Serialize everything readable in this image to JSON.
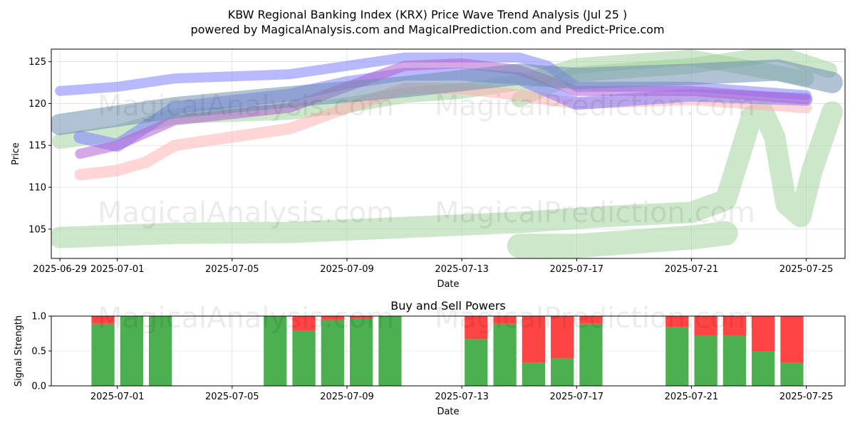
{
  "title_line1": "KBW Regional Banking Index (KRX) Price Wave Trend Analysis (Jul 25 )",
  "title_line2": "powered by MagicalAnalysis.com and MagicalPrediction.com and Predict-Price.com",
  "watermarks": [
    "MagicalAnalysis.com",
    "MagicalPrediction.com"
  ],
  "colors": {
    "green": "#4caf50",
    "red": "#ff4444",
    "band_green": "#a3d39c",
    "band_blue": "#8080ff",
    "band_red": "#ffb3b3",
    "band_purple": "#b060d0"
  },
  "chart_data": [
    {
      "type": "area",
      "title": "",
      "xlabel": "Date",
      "ylabel": "Price",
      "x_range": [
        "2025-06-29",
        "2025-07-26"
      ],
      "ylim": [
        101.5,
        126.5
      ],
      "y_ticks": [
        105,
        110,
        115,
        120,
        125
      ],
      "x_ticks": [
        "2025-06-29",
        "2025-07-01",
        "2025-07-05",
        "2025-07-09",
        "2025-07-13",
        "2025-07-17",
        "2025-07-21",
        "2025-07-25"
      ],
      "grid": true,
      "series": [
        {
          "color": "#a3d39c",
          "width": 22,
          "points": [
            [
              "2025-06-29",
              115.5
            ],
            [
              "2025-07-01",
              116.5
            ],
            [
              "2025-07-03",
              118.5
            ],
            [
              "2025-07-07",
              119
            ],
            [
              "2025-07-09",
              119.8
            ],
            [
              "2025-07-11",
              121
            ],
            [
              "2025-07-13",
              121.5
            ],
            [
              "2025-07-15",
              122.5
            ],
            [
              "2025-07-17",
              124.5
            ],
            [
              "2025-07-21",
              125.5
            ],
            [
              "2025-07-25",
              123
            ]
          ]
        },
        {
          "color": "#a3d39c",
          "width": 30,
          "points": [
            [
              "2025-06-29",
              104
            ],
            [
              "2025-07-03",
              104.5
            ],
            [
              "2025-07-07",
              104.6
            ],
            [
              "2025-07-11",
              105.2
            ],
            [
              "2025-07-15",
              105.8
            ],
            [
              "2025-07-18",
              106.5
            ],
            [
              "2025-07-21",
              107
            ],
            [
              "2025-07-22.2",
              108.5
            ],
            [
              "2025-07-22.7",
              114
            ],
            [
              "2025-07-23.1",
              118.5
            ],
            [
              "2025-07-23.5",
              119
            ],
            [
              "2025-07-23.9",
              116
            ],
            [
              "2025-07-24.3",
              108
            ],
            [
              "2025-07-24.8",
              106.5
            ],
            [
              "2025-07-25.2",
              112
            ],
            [
              "2025-07-25.9",
              119
            ]
          ]
        },
        {
          "color": "#a3d39c",
          "width": 34,
          "points": [
            [
              "2025-07-15",
              103
            ],
            [
              "2025-07-17",
              103
            ],
            [
              "2025-07-21",
              104
            ],
            [
              "2025-07-22.2",
              104.5
            ]
          ]
        },
        {
          "color": "#a3d39c",
          "width": 22,
          "points": [
            [
              "2025-07-15",
              120.5
            ],
            [
              "2025-07-17",
              123.5
            ],
            [
              "2025-07-21",
              124.5
            ],
            [
              "2025-07-24",
              126
            ],
            [
              "2025-07-25.8",
              124
            ]
          ]
        },
        {
          "color": "#ffb3b3",
          "width": 16,
          "points": [
            [
              "2025-06-29.7",
              111.5
            ],
            [
              "2025-07-01",
              112
            ],
            [
              "2025-07-02",
              113
            ],
            [
              "2025-07-03",
              115
            ],
            [
              "2025-07-07",
              117
            ],
            [
              "2025-07-09",
              119.5
            ],
            [
              "2025-07-11",
              121.8
            ],
            [
              "2025-07-13",
              121.8
            ],
            [
              "2025-07-15",
              121
            ],
            [
              "2025-07-17",
              120
            ],
            [
              "2025-07-21",
              120.5
            ],
            [
              "2025-07-25",
              119.5
            ]
          ]
        },
        {
          "color": "#8080ff",
          "width": 14,
          "points": [
            [
              "2025-06-29",
              121.5
            ],
            [
              "2025-07-01",
              122
            ],
            [
              "2025-07-03",
              123
            ],
            [
              "2025-07-07",
              123.5
            ],
            [
              "2025-07-09",
              124.5
            ],
            [
              "2025-07-11",
              125.5
            ],
            [
              "2025-07-13",
              125.5
            ],
            [
              "2025-07-15",
              125.5
            ],
            [
              "2025-07-16",
              124.5
            ],
            [
              "2025-07-17",
              122
            ],
            [
              "2025-07-21",
              122
            ],
            [
              "2025-07-25",
              121
            ]
          ]
        },
        {
          "color": "#8080ff",
          "width": 18,
          "points": [
            [
              "2025-06-29.7",
              116
            ],
            [
              "2025-07-01",
              115
            ],
            [
              "2025-07-03",
              119.5
            ],
            [
              "2025-07-07",
              121
            ],
            [
              "2025-07-09",
              122.5
            ],
            [
              "2025-07-11",
              123.5
            ],
            [
              "2025-07-13",
              123.5
            ],
            [
              "2025-07-15",
              123
            ],
            [
              "2025-07-16",
              121.5
            ],
            [
              "2025-07-17",
              120
            ],
            [
              "2025-07-21",
              121
            ],
            [
              "2025-07-25",
              120.5
            ]
          ]
        },
        {
          "color": "#b060d0",
          "width": 14,
          "points": [
            [
              "2025-06-29.7",
              114
            ],
            [
              "2025-07-01",
              115
            ],
            [
              "2025-07-03",
              118
            ],
            [
              "2025-07-07",
              119.5
            ],
            [
              "2025-07-09",
              122
            ],
            [
              "2025-07-11",
              124.5
            ],
            [
              "2025-07-13",
              124.8
            ],
            [
              "2025-07-15",
              124
            ],
            [
              "2025-07-17",
              121.5
            ],
            [
              "2025-07-21",
              121.5
            ],
            [
              "2025-07-25",
              120.5
            ]
          ]
        },
        {
          "color": "#6f8fb0",
          "width": 30,
          "points": [
            [
              "2025-06-29",
              117.5
            ],
            [
              "2025-07-03",
              119.5
            ],
            [
              "2025-07-07",
              120.8
            ],
            [
              "2025-07-11",
              122
            ],
            [
              "2025-07-15",
              123.5
            ],
            [
              "2025-07-17",
              123
            ],
            [
              "2025-07-21",
              123.5
            ],
            [
              "2025-07-24",
              124
            ],
            [
              "2025-07-25.9",
              122.5
            ]
          ]
        }
      ]
    },
    {
      "type": "bar",
      "title": "Buy and Sell Powers",
      "xlabel": "Date",
      "ylabel": "Signal Strength",
      "ylim": [
        0,
        1
      ],
      "y_ticks": [
        "0.0",
        "0.5",
        "1.0"
      ],
      "x_ticks": [
        "2025-07-01",
        "2025-07-05",
        "2025-07-09",
        "2025-07-13",
        "2025-07-17",
        "2025-07-21",
        "2025-07-25"
      ],
      "x_range": [
        "2025-06-29",
        "2025-07-26"
      ],
      "bars": [
        {
          "date": "2025-06-30",
          "buy": 0.89
        },
        {
          "date": "2025-07-01",
          "buy": 1.0
        },
        {
          "date": "2025-07-02",
          "buy": 1.0
        },
        {
          "date": "2025-07-06",
          "buy": 1.0
        },
        {
          "date": "2025-07-07",
          "buy": 0.79
        },
        {
          "date": "2025-07-08",
          "buy": 0.95
        },
        {
          "date": "2025-07-09",
          "buy": 0.97
        },
        {
          "date": "2025-07-10",
          "buy": 1.0
        },
        {
          "date": "2025-07-13",
          "buy": 0.67
        },
        {
          "date": "2025-07-14",
          "buy": 0.89
        },
        {
          "date": "2025-07-15",
          "buy": 0.33
        },
        {
          "date": "2025-07-16",
          "buy": 0.39
        },
        {
          "date": "2025-07-17",
          "buy": 0.89
        },
        {
          "date": "2025-07-20",
          "buy": 0.84
        },
        {
          "date": "2025-07-21",
          "buy": 0.72
        },
        {
          "date": "2025-07-22",
          "buy": 0.72
        },
        {
          "date": "2025-07-23",
          "buy": 0.5
        },
        {
          "date": "2025-07-24",
          "buy": 0.33
        }
      ]
    }
  ]
}
